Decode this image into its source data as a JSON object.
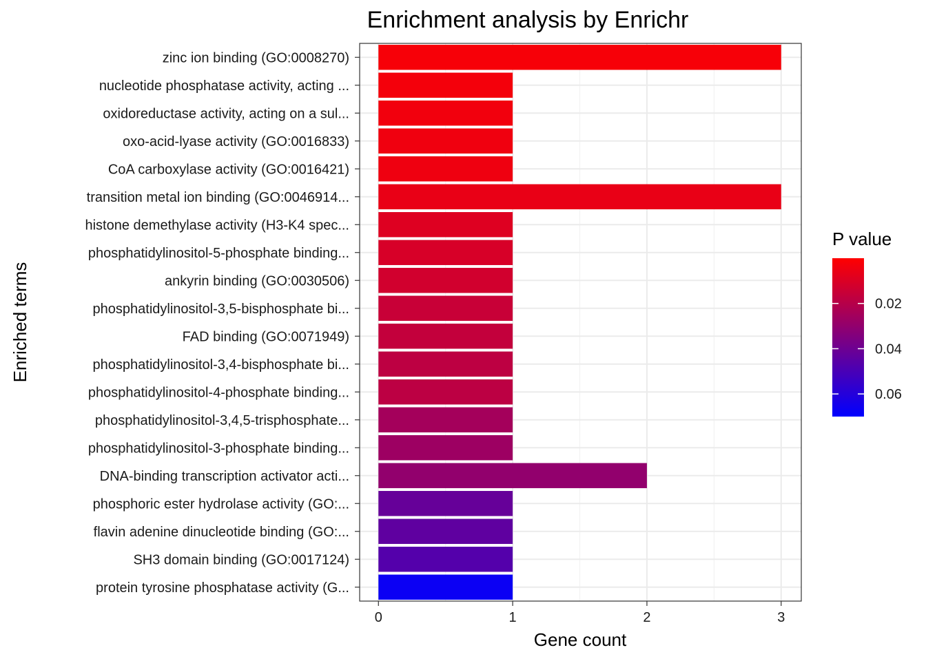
{
  "chart_data": {
    "type": "bar",
    "orientation": "horizontal",
    "title": "Enrichment analysis by Enrichr",
    "xlabel": "Gene count",
    "ylabel": "Enriched terms",
    "xlim": [
      -0.14,
      3.15
    ],
    "xticks": [
      "0",
      "1",
      "2",
      "3"
    ],
    "grid": true,
    "categories": [
      "zinc ion binding (GO:0008270)",
      "nucleotide phosphatase activity, acting ...",
      "oxidoreductase activity, acting on a sul...",
      "oxo-acid-lyase activity (GO:0016833)",
      "CoA carboxylase activity (GO:0016421)",
      "transition metal ion binding (GO:0046914...",
      "histone demethylase activity (H3-K4 spec...",
      "phosphatidylinositol-5-phosphate binding...",
      "ankyrin binding (GO:0030506)",
      "phosphatidylinositol-3,5-bisphosphate bi...",
      "FAD binding (GO:0071949)",
      "phosphatidylinositol-3,4-bisphosphate bi...",
      "phosphatidylinositol-4-phosphate binding...",
      "phosphatidylinositol-3,4,5-trisphosphate...",
      "phosphatidylinositol-3-phosphate binding...",
      "DNA-binding transcription activator acti...",
      "phosphoric ester hydrolase activity (GO:...",
      "flavin adenine dinucleotide binding (GO:...",
      "SH3 domain binding (GO:0017124)",
      "protein tyrosine phosphatase activity (G..."
    ],
    "values": [
      3,
      1,
      1,
      1,
      1,
      3,
      1,
      1,
      1,
      1,
      1,
      1,
      1,
      1,
      1,
      2,
      1,
      1,
      1,
      1
    ],
    "p_values": [
      0.0021,
      0.003,
      0.0035,
      0.004,
      0.0045,
      0.006,
      0.009,
      0.011,
      0.0125,
      0.015,
      0.0165,
      0.018,
      0.0185,
      0.025,
      0.027,
      0.03,
      0.042,
      0.044,
      0.047,
      0.067
    ],
    "legend": {
      "title": "P value",
      "placement": "right",
      "labels": [
        "0.02",
        "0.04",
        "0.06"
      ],
      "label_values": [
        0.02,
        0.04,
        0.06
      ],
      "range": [
        0.0,
        0.07
      ],
      "low_color": "#FF0000",
      "high_color": "#0000FF"
    },
    "colors": {
      "panel_border": "#333333",
      "grid_major": "#EBEBEB",
      "grid_minor": "#F2F2F2",
      "text": "#000000",
      "tick_text": "#1A1A1A"
    }
  }
}
